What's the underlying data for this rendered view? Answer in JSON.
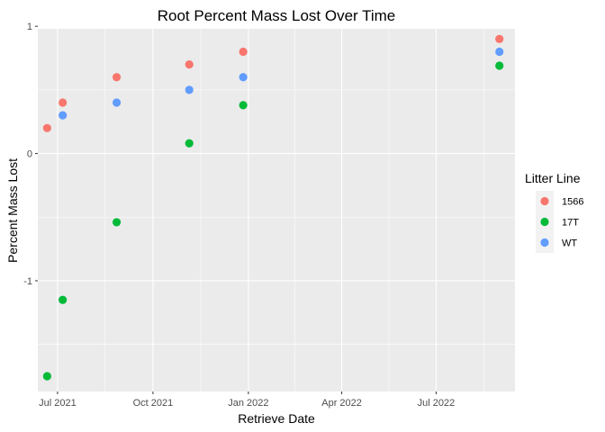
{
  "chart_data": {
    "type": "scatter",
    "title": "Root Percent Mass Lost Over Time",
    "xlabel": "Retrieve Date",
    "ylabel": "Percent Mass Lost",
    "x_ticks": [
      "2021-07-01",
      "2021-10-01",
      "2022-01-01",
      "2022-04-01",
      "2022-07-01"
    ],
    "x_tick_labels": [
      "Jul 2021",
      "Oct 2021",
      "Jan 2022",
      "Apr 2022",
      "Jul 2022"
    ],
    "xlim": [
      "2021-06-12",
      "2022-09-15"
    ],
    "y_ticks": [
      1,
      0,
      -1
    ],
    "y_tick_labels": [
      "1",
      "0",
      "-1"
    ],
    "ylim": [
      -1.87,
      0.98
    ],
    "grid": true,
    "legend": {
      "title": "Litter Line",
      "position": "right"
    },
    "series": [
      {
        "name": "1566",
        "color": "#F8766D",
        "points": [
          {
            "x": "2021-06-21",
            "y": 0.2
          },
          {
            "x": "2021-07-06",
            "y": 0.4
          },
          {
            "x": "2021-08-27",
            "y": 0.6
          },
          {
            "x": "2021-11-05",
            "y": 0.7
          },
          {
            "x": "2021-12-27",
            "y": 0.8
          },
          {
            "x": "2022-08-31",
            "y": 0.9
          }
        ]
      },
      {
        "name": "17T",
        "color": "#00BA38",
        "points": [
          {
            "x": "2021-06-21",
            "y": -1.75
          },
          {
            "x": "2021-07-06",
            "y": -1.15
          },
          {
            "x": "2021-08-27",
            "y": -0.54
          },
          {
            "x": "2021-11-05",
            "y": 0.08
          },
          {
            "x": "2021-12-27",
            "y": 0.38
          },
          {
            "x": "2022-08-31",
            "y": 0.69
          }
        ]
      },
      {
        "name": "WT",
        "color": "#619CFF",
        "points": [
          {
            "x": "2021-07-06",
            "y": 0.3
          },
          {
            "x": "2021-08-27",
            "y": 0.4
          },
          {
            "x": "2021-11-05",
            "y": 0.5
          },
          {
            "x": "2021-12-27",
            "y": 0.6
          },
          {
            "x": "2022-08-31",
            "y": 0.8
          }
        ]
      }
    ]
  },
  "colors": {
    "panel_background": "#EBEBEB",
    "grid_line": "#FFFFFF",
    "legend_key_background": "#F2F2F2"
  }
}
